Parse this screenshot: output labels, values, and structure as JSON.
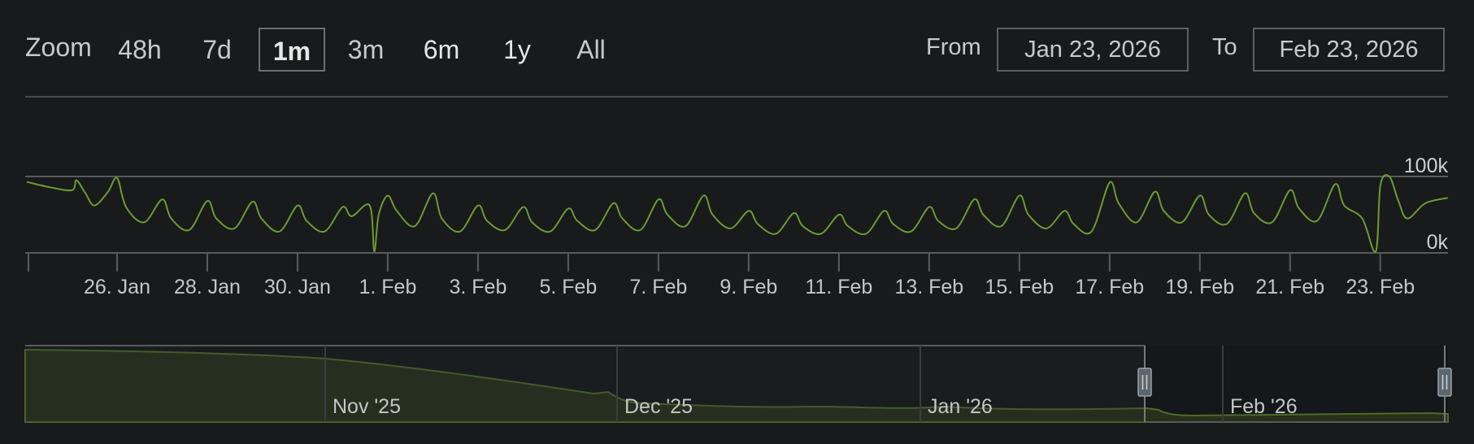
{
  "toolbar": {
    "zoom_label": "Zoom",
    "zoom_options": [
      "48h",
      "7d",
      "1m",
      "3m",
      "6m",
      "1y",
      "All"
    ],
    "selected_zoom": "1m",
    "from_label": "From",
    "from_value": "Jan 23, 2026",
    "to_label": "To",
    "to_value": "Feb 23, 2026"
  },
  "colors": {
    "background": "#181a1b",
    "line": "#6c9a34",
    "navigator_fill": "#26301a",
    "grid": "#5a5a5a"
  },
  "chart_data": {
    "type": "line",
    "x_unit": "days since Jan 24, 2026",
    "xlim": [
      0,
      31.5
    ],
    "ylim": [
      0,
      100000
    ],
    "y_tick_labels": [
      "100k",
      "0k"
    ],
    "y_ticks": [
      100000,
      0
    ],
    "x_tick_labels": [
      "26. Jan",
      "28. Jan",
      "30. Jan",
      "1. Feb",
      "3. Feb",
      "5. Feb",
      "7. Feb",
      "9. Feb",
      "11. Feb",
      "13. Feb",
      "15. Feb",
      "17. Feb",
      "19. Feb",
      "21. Feb",
      "23. Feb"
    ],
    "grid": true,
    "legend": "none",
    "x": [
      0.0,
      0.5,
      1.0,
      1.1,
      1.3,
      1.5,
      1.8,
      2.0,
      2.2,
      2.6,
      3.0,
      3.2,
      3.6,
      4.0,
      4.2,
      4.6,
      5.0,
      5.2,
      5.6,
      6.0,
      6.2,
      6.6,
      7.0,
      7.2,
      7.6,
      7.7,
      7.8,
      8.0,
      8.2,
      8.6,
      9.0,
      9.2,
      9.6,
      10.0,
      10.2,
      10.6,
      11.0,
      11.2,
      11.6,
      12.0,
      12.2,
      12.6,
      13.0,
      13.2,
      13.6,
      14.0,
      14.2,
      14.6,
      15.0,
      15.2,
      15.6,
      16.0,
      16.2,
      16.6,
      17.0,
      17.2,
      17.6,
      18.0,
      18.2,
      18.6,
      19.0,
      19.2,
      19.6,
      20.0,
      20.2,
      20.6,
      21.0,
      21.2,
      21.6,
      22.0,
      22.2,
      22.6,
      23.0,
      23.2,
      23.6,
      24.0,
      24.2,
      24.6,
      25.0,
      25.2,
      25.6,
      26.0,
      26.2,
      26.6,
      27.0,
      27.2,
      27.6,
      28.0,
      28.2,
      28.6,
      29.0,
      29.2,
      29.6,
      29.9,
      30.0,
      30.2,
      30.4,
      30.6,
      31.0,
      31.5
    ],
    "y": [
      93000,
      86000,
      82000,
      95000,
      78000,
      62000,
      80000,
      98000,
      60000,
      40000,
      70000,
      45000,
      30000,
      68000,
      45000,
      32000,
      67000,
      45000,
      28000,
      62000,
      42000,
      28000,
      60000,
      48000,
      62000,
      2000,
      50000,
      75000,
      55000,
      35000,
      78000,
      45000,
      28000,
      62000,
      42000,
      30000,
      60000,
      40000,
      28000,
      58000,
      42000,
      30000,
      65000,
      45000,
      30000,
      70000,
      50000,
      35000,
      75000,
      50000,
      32000,
      55000,
      38000,
      25000,
      52000,
      35000,
      25000,
      50000,
      35000,
      25000,
      55000,
      38000,
      28000,
      60000,
      42000,
      32000,
      70000,
      50000,
      35000,
      75000,
      50000,
      32000,
      55000,
      38000,
      28000,
      92000,
      65000,
      40000,
      80000,
      55000,
      40000,
      75000,
      50000,
      38000,
      78000,
      52000,
      40000,
      82000,
      58000,
      42000,
      90000,
      62000,
      45000,
      2000,
      88000,
      100000,
      68000,
      45000,
      65000,
      72000
    ]
  },
  "navigator": {
    "labels": [
      "Nov '25",
      "Dec '25",
      "Jan '26",
      "Feb '26"
    ]
  }
}
